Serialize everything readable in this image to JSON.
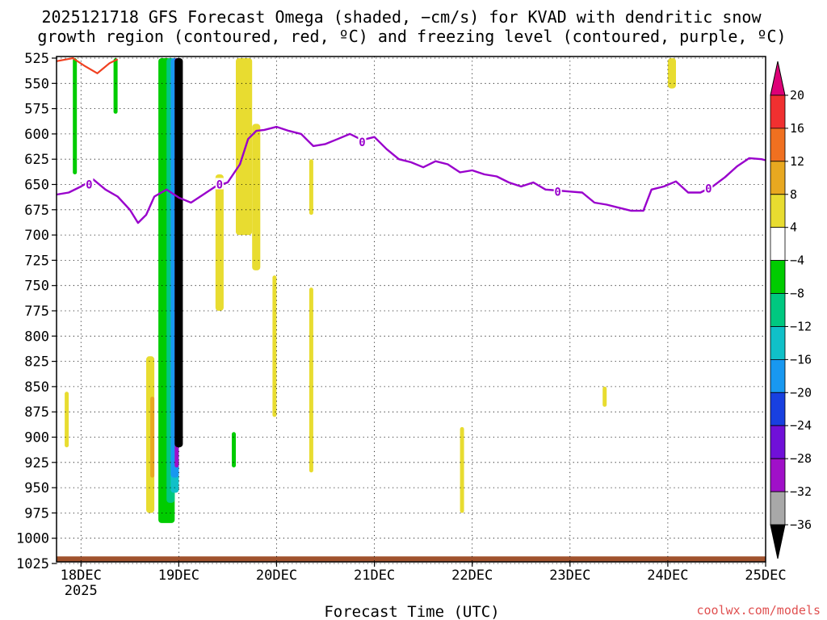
{
  "chart_data": {
    "type": "heatmap",
    "title_lines": [
      "2025121718 GFS Forecast Omega (shaded, −cm/s) for KVAD with dendritic snow",
      "growth region (contoured, red, ºC) and freezing level (contoured, purple, ºC)"
    ],
    "xlabel": "Forecast Time (UTC)",
    "x_ticks": [
      "18DEC",
      "19DEC",
      "20DEC",
      "21DEC",
      "22DEC",
      "23DEC",
      "24DEC",
      "25DEC"
    ],
    "x_tick_sublabel": "2025",
    "x_range": [
      "2025-12-17T18",
      "2025-12-25T00"
    ],
    "y_ticks": [
      525,
      550,
      575,
      600,
      625,
      650,
      675,
      700,
      725,
      750,
      775,
      800,
      825,
      850,
      875,
      900,
      925,
      950,
      975,
      1000,
      1025
    ],
    "y_range": [
      525,
      1025
    ],
    "y_direction": "pressure increasing downward",
    "grid": true,
    "colorbar": {
      "labels": [
        "20",
        "16",
        "12",
        "8",
        "4",
        "−4",
        "−8",
        "−12",
        "−16",
        "−20",
        "−24",
        "−28",
        "−32",
        "−36"
      ],
      "bands": [
        {
          "color": "#dd0077",
          "range": "above 20"
        },
        {
          "color": "#f03030",
          "range": "16 to 20"
        },
        {
          "color": "#f07020",
          "range": "12 to 16"
        },
        {
          "color": "#e8a820",
          "range": "8 to 12"
        },
        {
          "color": "#e8dc30",
          "range": "4 to 8"
        },
        {
          "color": "#ffffff",
          "range": "-4 to 4"
        },
        {
          "color": "#00cc00",
          "range": "-8 to -4"
        },
        {
          "color": "#00c880",
          "range": "-12 to -8"
        },
        {
          "color": "#10c0c8",
          "range": "-16 to -12"
        },
        {
          "color": "#1898f0",
          "range": "-20 to -16"
        },
        {
          "color": "#1840e0",
          "range": "-24 to -20"
        },
        {
          "color": "#7010d8",
          "range": "-28 to -24"
        },
        {
          "color": "#a010c8",
          "range": "-32 to -28"
        },
        {
          "color": "#a8a8a8",
          "range": "-36 to -32"
        },
        {
          "color": "#000000",
          "range": "below -36"
        }
      ]
    },
    "freezing_level": {
      "color": "#9900cc",
      "label": "0",
      "points": [
        [
          "2025-12-17T18",
          660
        ],
        [
          "2025-12-17T21",
          658
        ],
        [
          "2025-12-18T00",
          652
        ],
        [
          "2025-12-18T03",
          645
        ],
        [
          "2025-12-18T06",
          655
        ],
        [
          "2025-12-18T09",
          662
        ],
        [
          "2025-12-18T12",
          675
        ],
        [
          "2025-12-18T14",
          688
        ],
        [
          "2025-12-18T16",
          680
        ],
        [
          "2025-12-18T18",
          662
        ],
        [
          "2025-12-18T21",
          655
        ],
        [
          "2025-12-19T00",
          663
        ],
        [
          "2025-12-19T03",
          668
        ],
        [
          "2025-12-19T06",
          660
        ],
        [
          "2025-12-19T09",
          652
        ],
        [
          "2025-12-19T12",
          648
        ],
        [
          "2025-12-19T15",
          630
        ],
        [
          "2025-12-19T17",
          605
        ],
        [
          "2025-12-19T19",
          597
        ],
        [
          "2025-12-19T21",
          596
        ],
        [
          "2025-12-20T00",
          593
        ],
        [
          "2025-12-20T03",
          597
        ],
        [
          "2025-12-20T06",
          600
        ],
        [
          "2025-12-20T09",
          612
        ],
        [
          "2025-12-20T12",
          610
        ],
        [
          "2025-12-20T15",
          605
        ],
        [
          "2025-12-20T18",
          600
        ],
        [
          "2025-12-20T21",
          606
        ],
        [
          "2025-12-21T00",
          603
        ],
        [
          "2025-12-21T03",
          615
        ],
        [
          "2025-12-21T06",
          625
        ],
        [
          "2025-12-21T09",
          628
        ],
        [
          "2025-12-21T12",
          633
        ],
        [
          "2025-12-21T15",
          627
        ],
        [
          "2025-12-21T18",
          630
        ],
        [
          "2025-12-21T21",
          638
        ],
        [
          "2025-12-22T00",
          636
        ],
        [
          "2025-12-22T03",
          640
        ],
        [
          "2025-12-22T06",
          642
        ],
        [
          "2025-12-22T09",
          648
        ],
        [
          "2025-12-22T12",
          652
        ],
        [
          "2025-12-22T15",
          648
        ],
        [
          "2025-12-22T18",
          655
        ],
        [
          "2025-12-22T21",
          656
        ],
        [
          "2025-12-23T00",
          657
        ],
        [
          "2025-12-23T03",
          658
        ],
        [
          "2025-12-23T06",
          668
        ],
        [
          "2025-12-23T09",
          670
        ],
        [
          "2025-12-23T12",
          673
        ],
        [
          "2025-12-23T15",
          676
        ],
        [
          "2025-12-23T18",
          676
        ],
        [
          "2025-12-23T20",
          655
        ],
        [
          "2025-12-23T23",
          652
        ],
        [
          "2025-12-24T02",
          647
        ],
        [
          "2025-12-24T05",
          658
        ],
        [
          "2025-12-24T08",
          658
        ],
        [
          "2025-12-24T11",
          652
        ],
        [
          "2025-12-24T14",
          643
        ],
        [
          "2025-12-24T17",
          632
        ],
        [
          "2025-12-24T20",
          624
        ],
        [
          "2025-12-24T23",
          625
        ],
        [
          "2025-12-25T00",
          626
        ]
      ]
    },
    "dendritic_growth_contour": {
      "color": "#f04020",
      "points": [
        [
          "2025-12-17T18",
          528
        ],
        [
          "2025-12-17T22",
          525
        ],
        [
          "2025-12-18T01",
          533
        ],
        [
          "2025-12-18T04",
          540
        ],
        [
          "2025-12-18T07",
          530
        ],
        [
          "2025-12-18T09",
          526
        ]
      ]
    },
    "omega_features": [
      {
        "color": "#e8dc30",
        "t0": "2025-12-19T14",
        "t1": "2025-12-19T18",
        "p0": 525,
        "p1": 700
      },
      {
        "color": "#e8dc30",
        "t0": "2025-12-19T18",
        "t1": "2025-12-19T20",
        "p0": 590,
        "p1": 735
      },
      {
        "color": "#e8dc30",
        "t0": "2025-12-19T09",
        "t1": "2025-12-19T11",
        "p0": 640,
        "p1": 775
      },
      {
        "color": "#e8dc30",
        "t0": "2025-12-19T23",
        "t1": "2025-12-20T00",
        "p0": 740,
        "p1": 880
      },
      {
        "color": "#e8dc30",
        "t0": "2025-12-20T08",
        "t1": "2025-12-20T09",
        "p0": 752,
        "p1": 935
      },
      {
        "color": "#e8dc30",
        "t0": "2025-12-20T08",
        "t1": "2025-12-20T09",
        "p0": 625,
        "p1": 680
      },
      {
        "color": "#e8dc30",
        "t0": "2025-12-18T16",
        "t1": "2025-12-18T18",
        "p0": 820,
        "p1": 975
      },
      {
        "color": "#e8a820",
        "t0": "2025-12-18T17",
        "t1": "2025-12-18T18",
        "p0": 860,
        "p1": 940
      },
      {
        "color": "#e8dc30",
        "t0": "2025-12-17T20",
        "t1": "2025-12-17T21",
        "p0": 855,
        "p1": 910
      },
      {
        "color": "#e8dc30",
        "t0": "2025-12-24T00",
        "t1": "2025-12-24T02",
        "p0": 525,
        "p1": 555
      },
      {
        "color": "#e8dc30",
        "t0": "2025-12-21T21",
        "t1": "2025-12-21T22",
        "p0": 890,
        "p1": 975
      },
      {
        "color": "#e8dc30",
        "t0": "2025-12-23T08",
        "t1": "2025-12-23T09",
        "p0": 850,
        "p1": 870
      },
      {
        "color": "#00cc00",
        "t0": "2025-12-18T19",
        "t1": "2025-12-18T23",
        "p0": 525,
        "p1": 985
      },
      {
        "color": "#00c880",
        "t0": "2025-12-18T21",
        "t1": "2025-12-18T23",
        "p0": 525,
        "p1": 965
      },
      {
        "color": "#10c0c8",
        "t0": "2025-12-18T22",
        "t1": "2025-12-19T00",
        "p0": 525,
        "p1": 955
      },
      {
        "color": "#1898f0",
        "t0": "2025-12-18T22",
        "t1": "2025-12-19T00",
        "p0": 525,
        "p1": 940
      },
      {
        "color": "#a010c8",
        "t0": "2025-12-18T23",
        "t1": "2025-12-19T00",
        "p0": 525,
        "p1": 930
      },
      {
        "color": "#000000",
        "t0": "2025-12-18T23",
        "t1": "2025-12-19T01",
        "p0": 525,
        "p1": 910
      },
      {
        "color": "#00cc00",
        "t0": "2025-12-18T08",
        "t1": "2025-12-18T09",
        "p0": 525,
        "p1": 580
      },
      {
        "color": "#00cc00",
        "t0": "2025-12-17T22",
        "t1": "2025-12-17T23",
        "p0": 525,
        "p1": 640
      },
      {
        "color": "#00cc00",
        "t0": "2025-12-19T13",
        "t1": "2025-12-19T14",
        "p0": 895,
        "p1": 930
      }
    ],
    "surface_fill_color": "#a0522d"
  },
  "footer": {
    "credit": "coolwx.com/models"
  }
}
